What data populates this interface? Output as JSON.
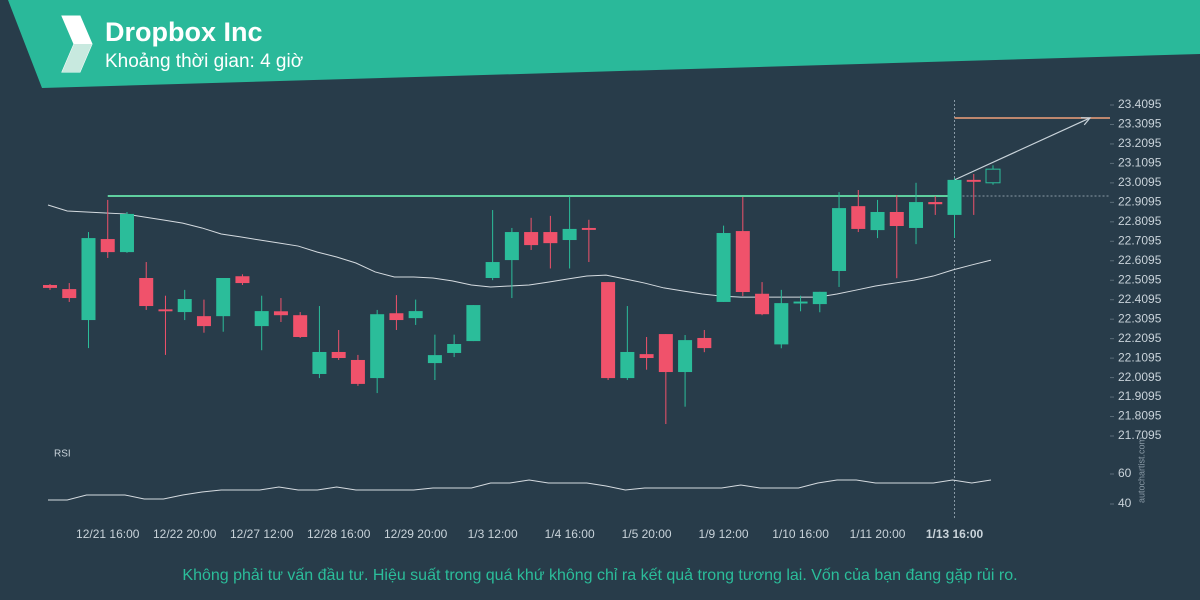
{
  "chart_data": {
    "type": "candlestick",
    "title": "Dropbox Inc",
    "subtitle": "Khoảng thời gian: 4 giờ",
    "categories": [
      null,
      null,
      null,
      "12/21 16:00",
      null,
      null,
      null,
      "12/22 20:00",
      null,
      null,
      null,
      "12/27 12:00",
      null,
      null,
      null,
      "12/28 16:00",
      null,
      null,
      null,
      "12/29 20:00",
      null,
      null,
      null,
      "1/3 12:00",
      null,
      null,
      null,
      "1/4 16:00",
      null,
      null,
      null,
      "1/5 20:00",
      null,
      null,
      null,
      "1/9 12:00",
      null,
      null,
      null,
      "1/10 16:00",
      null,
      null,
      null,
      "1/11 20:00",
      null,
      null,
      null,
      "1/13 16:00",
      null,
      null
    ],
    "open": [
      22.485,
      22.464,
      22.305,
      22.721,
      22.654,
      22.521,
      22.36,
      22.346,
      22.325,
      22.325,
      22.53,
      22.274,
      22.35,
      22.33,
      22.028,
      22.141,
      22.1,
      22.007,
      22.34,
      22.315,
      22.084,
      22.136,
      22.197,
      22.521,
      22.613,
      22.757,
      22.757,
      22.716,
      22.778,
      22.5,
      22.007,
      22.13,
      22.233,
      22.038,
      22.213,
      22.398,
      22.762,
      22.44,
      22.18,
      22.39,
      22.387,
      22.557,
      22.89,
      22.767,
      22.86,
      22.778,
      22.911,
      22.845,
      23.025,
      23.01
    ],
    "high": [
      22.49,
      22.495,
      22.757,
      22.922,
      22.86,
      22.603,
      22.43,
      22.46,
      22.41,
      22.52,
      22.54,
      22.43,
      22.418,
      22.346,
      22.377,
      22.254,
      22.126,
      22.357,
      22.433,
      22.41,
      22.23,
      22.23,
      22.382,
      22.87,
      22.778,
      22.83,
      22.84,
      22.94,
      22.82,
      22.5,
      22.377,
      22.218,
      22.233,
      22.228,
      22.254,
      22.79,
      22.937,
      22.5,
      22.46,
      22.43,
      22.45,
      22.962,
      22.973,
      22.922,
      22.947,
      23.01,
      22.942,
      23.035,
      23.055,
      23.1
    ],
    "low": [
      22.46,
      22.398,
      22.161,
      22.624,
      22.65,
      22.357,
      22.126,
      22.305,
      22.24,
      22.245,
      22.485,
      22.15,
      22.295,
      22.213,
      22.007,
      22.1,
      21.967,
      21.93,
      22.254,
      22.28,
      21.997,
      22.115,
      22.197,
      22.51,
      22.418,
      22.665,
      22.57,
      22.57,
      22.603,
      21.997,
      21.997,
      22.05,
      21.771,
      21.86,
      22.14,
      22.398,
      22.428,
      22.33,
      22.16,
      22.35,
      22.345,
      22.475,
      22.757,
      22.726,
      22.52,
      22.695,
      22.845,
      22.727,
      22.845,
      23.0
    ],
    "close": [
      22.47,
      22.418,
      22.726,
      22.654,
      22.85,
      22.377,
      22.35,
      22.413,
      22.274,
      22.521,
      22.495,
      22.351,
      22.33,
      22.218,
      22.141,
      22.11,
      21.977,
      22.335,
      22.305,
      22.351,
      22.125,
      22.182,
      22.382,
      22.603,
      22.757,
      22.69,
      22.7,
      22.773,
      22.768,
      22.007,
      22.141,
      22.11,
      22.038,
      22.202,
      22.161,
      22.752,
      22.449,
      22.335,
      22.392,
      22.4,
      22.45,
      22.88,
      22.773,
      22.86,
      22.788,
      22.911,
      22.9,
      23.025,
      23.015,
      23.08
    ],
    "up_color": "#2bbd9a",
    "down_color": "#f0526b",
    "ylim": [
      21.7095,
      23.4095
    ],
    "yticks": [
      23.4095,
      23.3095,
      23.2095,
      23.1095,
      23.0095,
      22.9095,
      22.8095,
      22.7095,
      22.6095,
      22.5095,
      22.4095,
      22.3095,
      22.2095,
      22.1095,
      22.0095,
      21.9095,
      21.8095,
      21.7095
    ],
    "ma": {
      "color": "#d5dbe0",
      "values": [
        22.896,
        22.865,
        22.86,
        22.855,
        22.85,
        22.834,
        22.819,
        22.803,
        22.778,
        22.747,
        22.732,
        22.716,
        22.701,
        22.685,
        22.654,
        22.629,
        22.598,
        22.552,
        22.526,
        22.526,
        22.521,
        22.506,
        22.485,
        22.475,
        22.48,
        22.485,
        22.5,
        22.516,
        22.531,
        22.536,
        22.516,
        22.495,
        22.47,
        22.454,
        22.439,
        22.428,
        22.423,
        22.423,
        22.423,
        22.423,
        22.423,
        22.439,
        22.459,
        22.48,
        22.495,
        22.51,
        22.531,
        22.562,
        22.588,
        22.613
      ]
    },
    "resistance": {
      "value": 22.942,
      "color": "#5fcf9f"
    },
    "target": {
      "value": 23.343,
      "color": "#f0a07a"
    },
    "highlight_index": 47,
    "rsi": {
      "label": "RSI",
      "color": "#d5dbe0",
      "values": [
        42.7,
        42.7,
        46,
        46,
        46,
        43.3,
        43.3,
        46,
        48,
        49.3,
        49.3,
        49.3,
        51.3,
        49.3,
        49.3,
        51.3,
        49.3,
        49.3,
        49.3,
        49.3,
        50.7,
        50.7,
        50.7,
        54,
        54,
        56,
        54,
        54,
        54,
        52,
        49.3,
        50.7,
        50.7,
        50.7,
        50.7,
        50.7,
        52.7,
        50.7,
        50.7,
        50.7,
        54,
        56,
        56,
        54,
        54,
        54,
        54,
        56,
        54,
        56
      ],
      "ylim": [
        35,
        65
      ],
      "yticks": [
        60,
        40
      ]
    }
  },
  "footer": "Không phải tư vấn đầu tư. Hiệu suất trong quá khứ không chỉ ra kết quả trong tương lai. Vốn của bạn đang gặp rủi ro.",
  "watermark": "autochartist.com"
}
